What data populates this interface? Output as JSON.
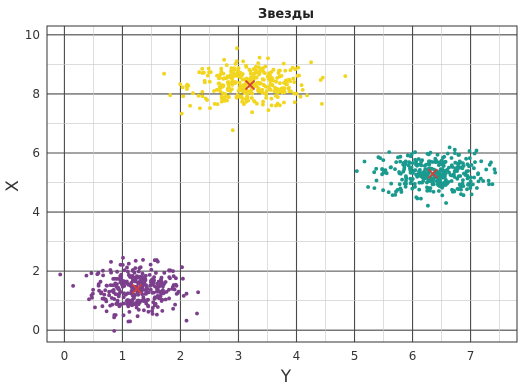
{
  "chart_data": {
    "type": "scatter",
    "title": "Звезды",
    "xlabel": "Y",
    "ylabel": "X",
    "xlim": [
      -0.3,
      7.8
    ],
    "ylim": [
      -0.4,
      10.3
    ],
    "xticks": [
      0,
      1,
      2,
      3,
      4,
      5,
      6,
      7
    ],
    "yticks": [
      0,
      2,
      4,
      6,
      8,
      10
    ],
    "grid": true,
    "legend": "none",
    "clusters": [
      {
        "color": "#7b3f8c",
        "center": [
          1.25,
          1.4
        ],
        "spread": [
          0.38,
          0.42
        ],
        "count": 320
      },
      {
        "color": "#f2d51e",
        "center": [
          3.2,
          8.3
        ],
        "spread": [
          0.52,
          0.38
        ],
        "count": 320
      },
      {
        "color": "#1a9a8e",
        "center": [
          6.35,
          5.3
        ],
        "spread": [
          0.45,
          0.38
        ],
        "count": 320
      }
    ],
    "centroid_marker": {
      "shape": "x",
      "color": "#d2403a"
    }
  }
}
